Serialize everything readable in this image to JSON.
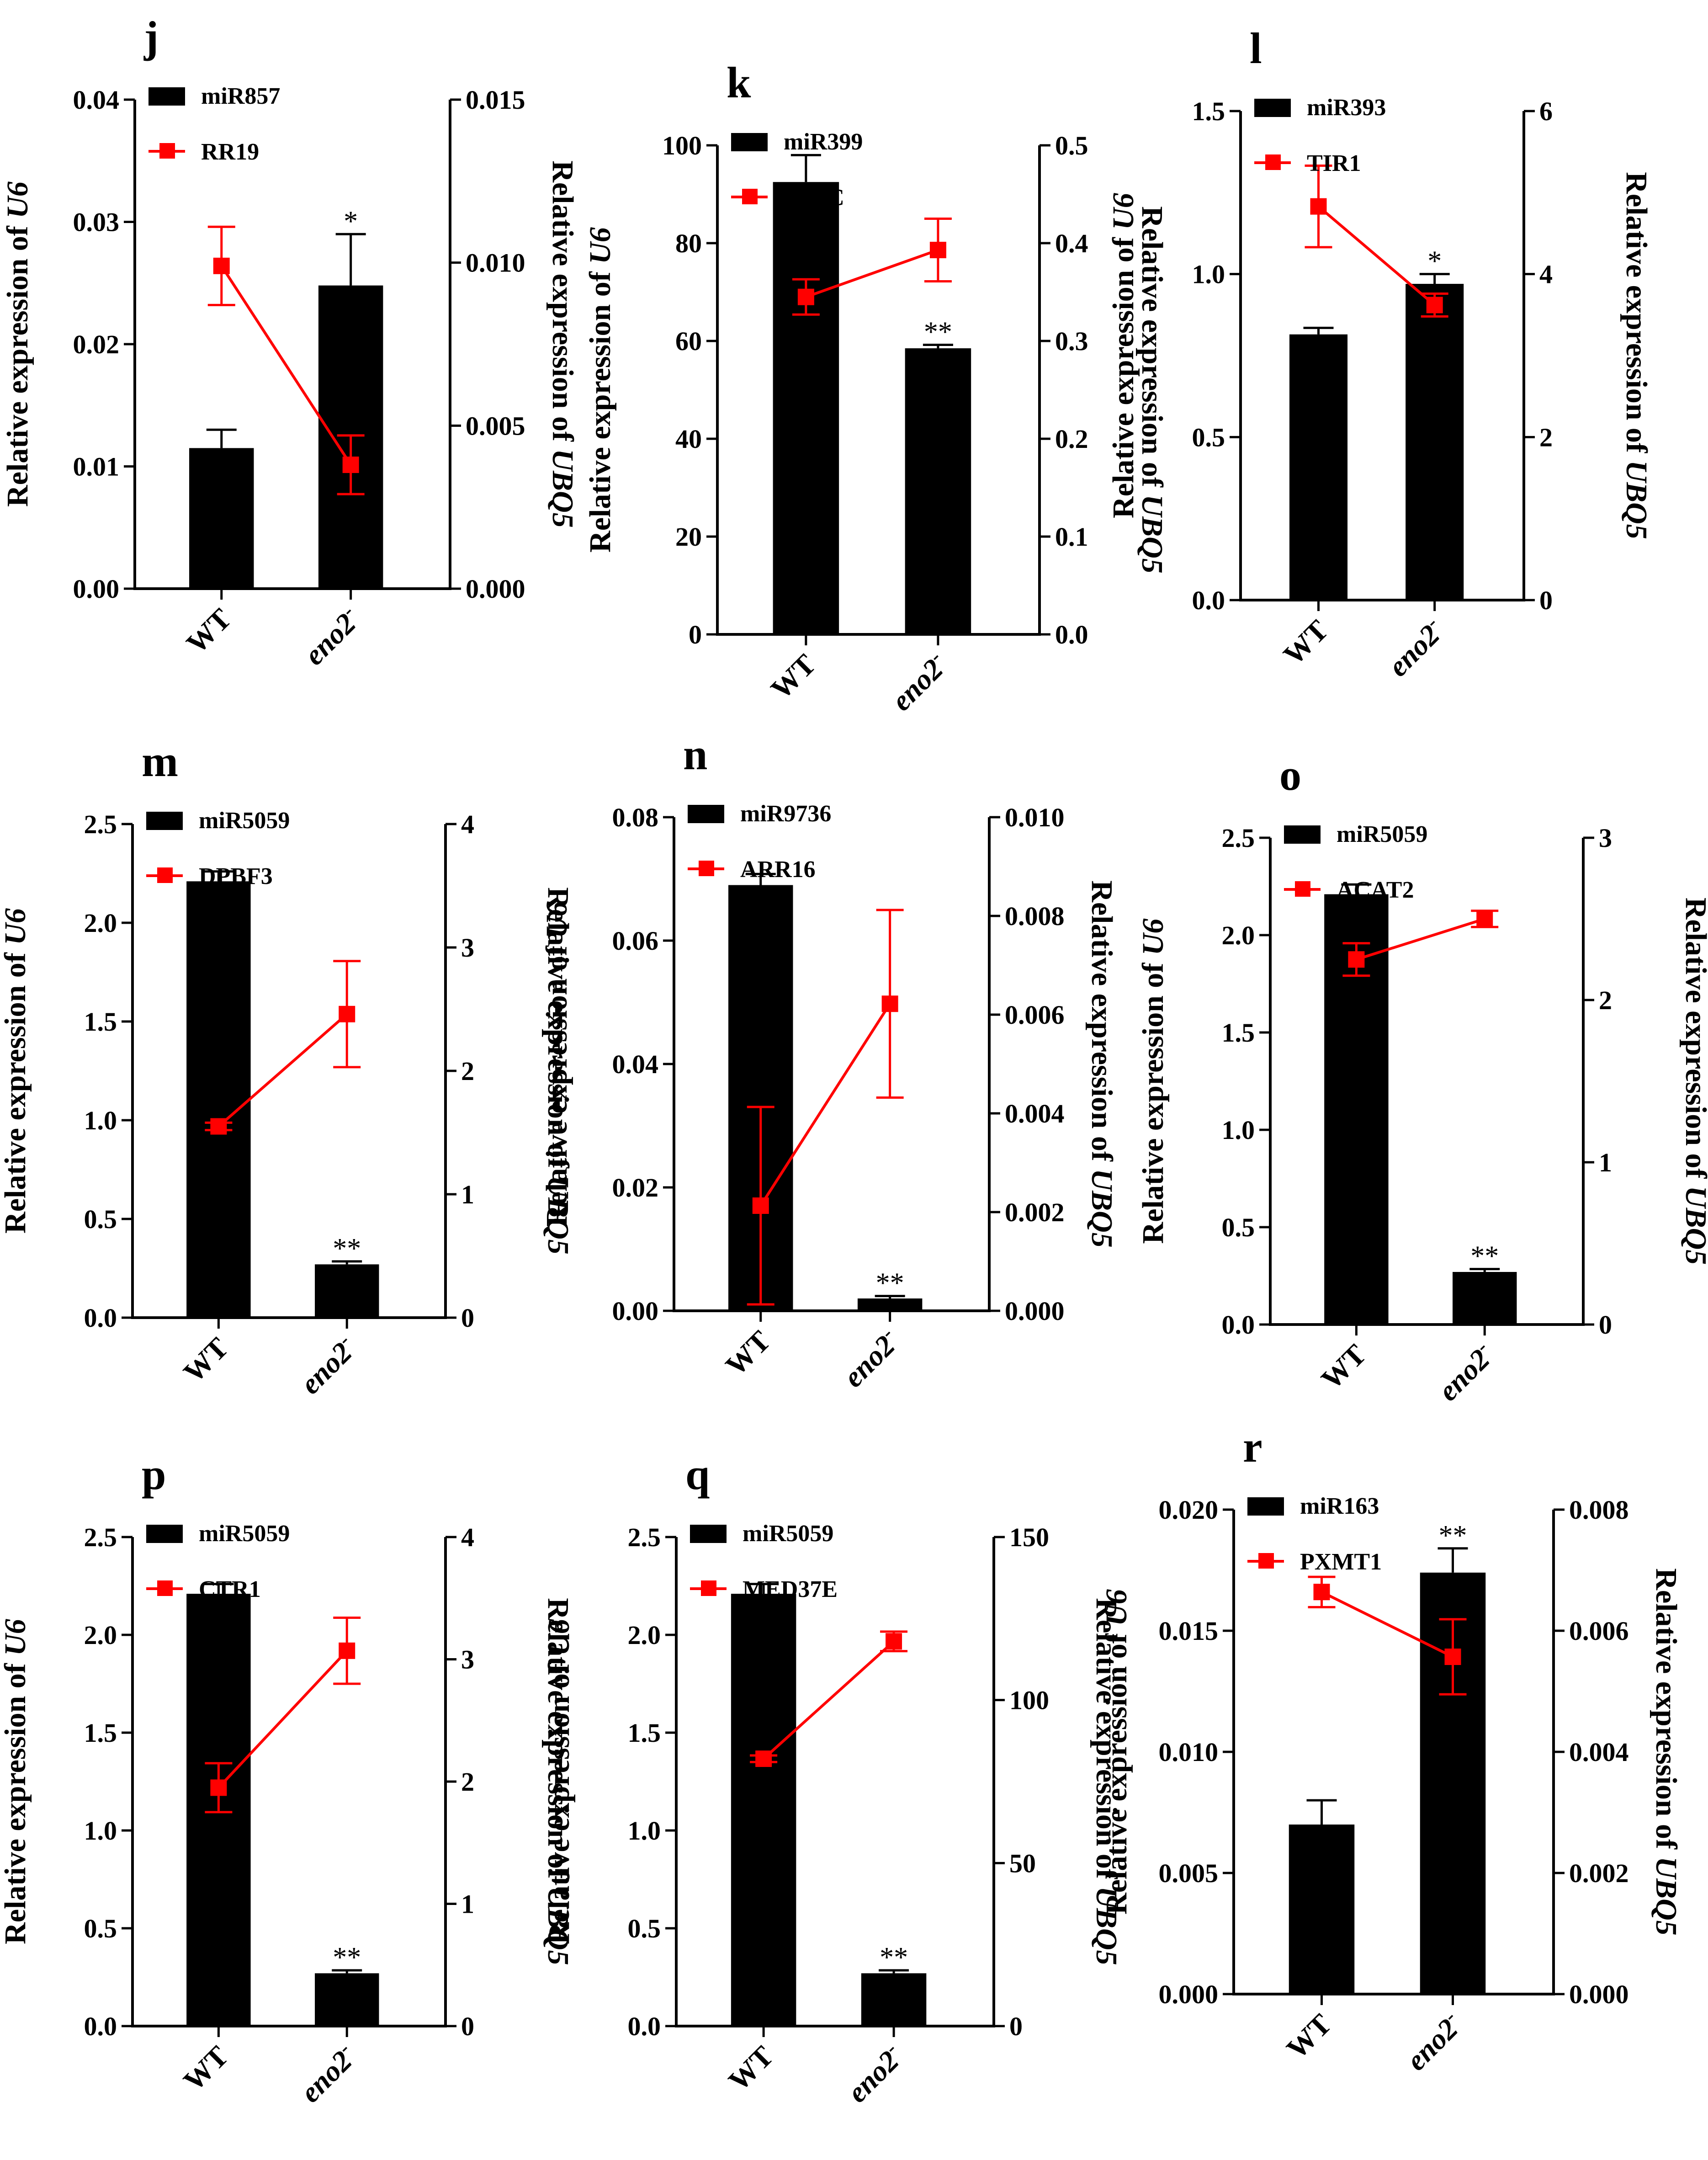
{
  "figure": {
    "common": {
      "left_axis_label": "Relative expression of",
      "left_axis_gene": "U6",
      "right_axis_label": "Relative expression of",
      "right_axis_gene": "UBQ5",
      "x_categories": [
        "WT",
        "eno2"
      ],
      "mutant_superscript": "-",
      "bar_color": "#000000",
      "line_color": "#ff0000"
    }
  },
  "chart_data": [
    {
      "type": "bar+line",
      "panel": "j",
      "title": "j",
      "categories": [
        "WT",
        "eno2-"
      ],
      "bar_series": {
        "name": "miR857",
        "values": [
          0.0115,
          0.0248
        ],
        "errors": [
          0.0015,
          0.0042
        ],
        "significance": [
          "",
          "*"
        ]
      },
      "line_series": {
        "name": "RR19",
        "values": [
          0.0099,
          0.0038
        ],
        "errors": [
          0.0012,
          0.0009
        ]
      },
      "left_axis": {
        "min": 0,
        "max": 0.04,
        "ticks": [
          "0.00",
          "0.01",
          "0.02",
          "0.03",
          "0.04"
        ]
      },
      "right_axis": {
        "min": 0,
        "max": 0.015,
        "ticks": [
          "0.000",
          "0.005",
          "0.010",
          "0.015"
        ]
      }
    },
    {
      "type": "bar+line",
      "panel": "k",
      "title": "k",
      "categories": [
        "WT",
        "eno2-"
      ],
      "bar_series": {
        "name": "miR399",
        "values": [
          92.5,
          58.5
        ],
        "errors": [
          5.5,
          0.7
        ],
        "significance": [
          "",
          "**"
        ]
      },
      "line_series": {
        "name": "INVC",
        "values": [
          0.345,
          0.393
        ],
        "errors": [
          0.018,
          0.032
        ]
      },
      "left_axis": {
        "min": 0,
        "max": 100,
        "ticks": [
          "0",
          "20",
          "40",
          "60",
          "80",
          "100"
        ]
      },
      "right_axis": {
        "min": 0,
        "max": 0.5,
        "ticks": [
          "0.0",
          "0.1",
          "0.2",
          "0.3",
          "0.4",
          "0.5"
        ]
      }
    },
    {
      "type": "bar+line",
      "panel": "l",
      "title": "l",
      "categories": [
        "WT",
        "eno2-"
      ],
      "bar_series": {
        "name": "miR393",
        "values": [
          0.815,
          0.97
        ],
        "errors": [
          0.02,
          0.03
        ],
        "significance": [
          "",
          "*"
        ]
      },
      "line_series": {
        "name": "TIR1",
        "values": [
          4.83,
          3.62
        ],
        "errors": [
          0.5,
          0.14
        ]
      },
      "left_axis": {
        "min": 0,
        "max": 1.5,
        "ticks": [
          "0.0",
          "0.5",
          "1.0",
          "1.5"
        ]
      },
      "right_axis": {
        "min": 0,
        "max": 6,
        "ticks": [
          "0",
          "2",
          "4",
          "6"
        ]
      }
    },
    {
      "type": "bar+line",
      "panel": "m",
      "title": "m",
      "categories": [
        "WT",
        "eno2-"
      ],
      "bar_series": {
        "name": "miR5059",
        "values": [
          2.21,
          0.27
        ],
        "errors": [
          0.05,
          0.015
        ],
        "significance": [
          "",
          "**"
        ]
      },
      "line_series": {
        "name": "DPBF3",
        "values": [
          1.55,
          2.46
        ],
        "errors": [
          0.03,
          0.43
        ]
      },
      "left_axis": {
        "min": 0,
        "max": 2.5,
        "ticks": [
          "0.0",
          "0.5",
          "1.0",
          "1.5",
          "2.0",
          "2.5"
        ]
      },
      "right_axis": {
        "min": 0,
        "max": 4,
        "ticks": [
          "0",
          "1",
          "2",
          "3",
          "4"
        ]
      }
    },
    {
      "type": "bar+line",
      "panel": "n",
      "title": "n",
      "categories": [
        "WT",
        "eno2-"
      ],
      "bar_series": {
        "name": "miR9736",
        "values": [
          0.069,
          0.002
        ],
        "errors": [
          0.0018,
          0.0004
        ],
        "significance": [
          "",
          "**"
        ]
      },
      "line_series": {
        "name": "ARR16",
        "values": [
          0.00213,
          0.00622
        ],
        "errors": [
          0.002,
          0.0019
        ]
      },
      "left_axis": {
        "min": 0,
        "max": 0.08,
        "ticks": [
          "0.00",
          "0.02",
          "0.04",
          "0.06",
          "0.08"
        ]
      },
      "right_axis": {
        "min": 0,
        "max": 0.01,
        "ticks": [
          "0.000",
          "0.002",
          "0.004",
          "0.006",
          "0.008",
          "0.010"
        ]
      }
    },
    {
      "type": "bar+line",
      "panel": "o",
      "title": "o",
      "categories": [
        "WT",
        "eno2-"
      ],
      "bar_series": {
        "name": "miR5059",
        "values": [
          2.21,
          0.27
        ],
        "errors": [
          0.05,
          0.015
        ],
        "significance": [
          "",
          "**"
        ]
      },
      "line_series": {
        "name": "ACAT2",
        "values": [
          2.25,
          2.5
        ],
        "errors": [
          0.1,
          0.05
        ]
      },
      "left_axis": {
        "min": 0,
        "max": 2.5,
        "ticks": [
          "0.0",
          "0.5",
          "1.0",
          "1.5",
          "2.0",
          "2.5"
        ]
      },
      "right_axis": {
        "min": 0,
        "max": 3,
        "ticks": [
          "0",
          "1",
          "2",
          "3"
        ]
      }
    },
    {
      "type": "bar+line",
      "panel": "p",
      "title": "p",
      "categories": [
        "WT",
        "eno2-"
      ],
      "bar_series": {
        "name": "miR5059",
        "values": [
          2.21,
          0.27
        ],
        "errors": [
          0.05,
          0.015
        ],
        "significance": [
          "",
          "**"
        ]
      },
      "line_series": {
        "name": "CTR1",
        "values": [
          1.95,
          3.07
        ],
        "errors": [
          0.2,
          0.27
        ]
      },
      "left_axis": {
        "min": 0,
        "max": 2.5,
        "ticks": [
          "0.0",
          "0.5",
          "1.0",
          "1.5",
          "2.0",
          "2.5"
        ]
      },
      "right_axis": {
        "min": 0,
        "max": 4,
        "ticks": [
          "0",
          "1",
          "2",
          "3",
          "4"
        ]
      }
    },
    {
      "type": "bar+line",
      "panel": "q",
      "title": "q",
      "categories": [
        "WT",
        "eno2-"
      ],
      "bar_series": {
        "name": "miR5059",
        "values": [
          2.21,
          0.27
        ],
        "errors": [
          0.05,
          0.015
        ],
        "significance": [
          "",
          "**"
        ]
      },
      "line_series": {
        "name": "MED37E",
        "values": [
          82,
          118
        ],
        "errors": [
          1,
          3
        ]
      },
      "left_axis": {
        "min": 0,
        "max": 2.5,
        "ticks": [
          "0.0",
          "0.5",
          "1.0",
          "1.5",
          "2.0",
          "2.5"
        ]
      },
      "right_axis": {
        "min": 0,
        "max": 150,
        "ticks": [
          "0",
          "50",
          "100",
          "150"
        ]
      }
    },
    {
      "type": "bar+line",
      "panel": "r",
      "title": "r",
      "categories": [
        "WT",
        "eno2-"
      ],
      "bar_series": {
        "name": "miR163",
        "values": [
          0.007,
          0.0174
        ],
        "errors": [
          0.001,
          0.001
        ],
        "significance": [
          "",
          "**"
        ]
      },
      "line_series": {
        "name": "PXMT1",
        "values": [
          0.00664,
          0.00557
        ],
        "errors": [
          0.00025,
          0.00062
        ]
      },
      "left_axis": {
        "min": 0,
        "max": 0.02,
        "ticks": [
          "0.000",
          "0.005",
          "0.010",
          "0.015",
          "0.020"
        ]
      },
      "right_axis": {
        "min": 0,
        "max": 0.008,
        "ticks": [
          "0.000",
          "0.002",
          "0.004",
          "0.006",
          "0.008"
        ]
      }
    }
  ]
}
